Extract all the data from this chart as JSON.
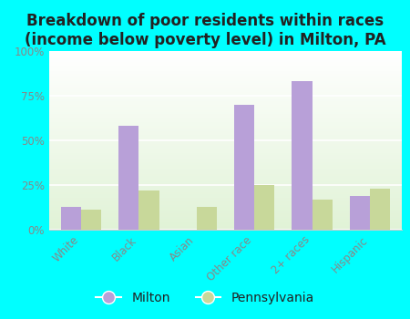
{
  "title": "Breakdown of poor residents within races\n(income below poverty level) in Milton, PA",
  "categories": [
    "White",
    "Black",
    "Asian",
    "Other race",
    "2+ races",
    "Hispanic"
  ],
  "milton_values": [
    0.13,
    0.58,
    0.0,
    0.7,
    0.83,
    0.19
  ],
  "pennsylvania_values": [
    0.11,
    0.22,
    0.13,
    0.25,
    0.17,
    0.23
  ],
  "milton_color": "#b8a0d8",
  "pennsylvania_color": "#c8d89a",
  "background_color": "#00ffff",
  "ytick_labels": [
    "0%",
    "25%",
    "50%",
    "75%",
    "100%"
  ],
  "ytick_values": [
    0,
    0.25,
    0.5,
    0.75,
    1.0
  ],
  "bar_width": 0.35,
  "title_fontsize": 12,
  "tick_fontsize": 8.5,
  "legend_fontsize": 10
}
